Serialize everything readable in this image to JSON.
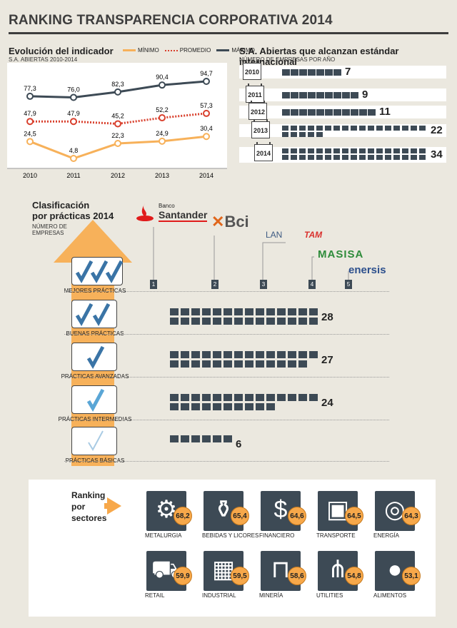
{
  "title": "RANKING TRANSPARENCIA CORPORATIVA 2014",
  "left_chart": {
    "heading": "Evolución del indicador",
    "subheading": "S.A. ABIERTAS 2010-2014",
    "legend": [
      "MÍNIMO",
      "PROMEDIO",
      "MÁXIMO"
    ],
    "years": [
      "2010",
      "2011",
      "2012",
      "2013",
      "2014"
    ],
    "min": [
      "24,5",
      "4,8",
      "22,3",
      "24,9",
      "30,4"
    ],
    "avg": [
      "47,9",
      "47,9",
      "45,2",
      "52,2",
      "57,3"
    ],
    "max": [
      "77,3",
      "76,0",
      "82,3",
      "90,4",
      "94,7"
    ]
  },
  "right_chart": {
    "heading": "S.A. Abiertas que alcanzan estándar internacional",
    "subheading": "NÚMERO DE EMPRESAS POR AÑO",
    "rows": [
      {
        "year": "2010",
        "count": "7"
      },
      {
        "year": "2011",
        "count": "9"
      },
      {
        "year": "2012",
        "count": "11"
      },
      {
        "year": "2013",
        "count": "22"
      },
      {
        "year": "2014",
        "count": "34"
      }
    ]
  },
  "classification": {
    "heading1": "Clasificación",
    "heading2": "por prácticas 2014",
    "sub1": "NÚMERO DE",
    "sub2": "EMPRESAS",
    "categories": [
      {
        "label": "MEJORES PRÁCTICAS",
        "count": ""
      },
      {
        "label": "BUENAS PRÁCTICAS",
        "count": "28"
      },
      {
        "label": "PRÁCTICAS AVANZADAS",
        "count": "27"
      },
      {
        "label": "PRÁCTICAS INTERMEDIAS",
        "count": "24"
      },
      {
        "label": "PRÁCTICAS BÁSICAS",
        "count": "6"
      }
    ],
    "logos": [
      "Banco",
      "Santander",
      "Bci",
      "LAN",
      "TAM",
      "MASISA",
      "enersis"
    ],
    "ranks": [
      "1",
      "2",
      "3",
      "4",
      "5"
    ]
  },
  "sectors": {
    "heading": [
      "Ranking",
      "por",
      "sectores"
    ],
    "items": [
      {
        "name": "METALURGIA",
        "score": "68,2"
      },
      {
        "name": "BEBIDAS Y LICORES",
        "score": "65,4"
      },
      {
        "name": "FINANCIERO",
        "score": "64,6"
      },
      {
        "name": "TRANSPORTE",
        "score": "64,5"
      },
      {
        "name": "ENERGÍA",
        "score": "64,3"
      },
      {
        "name": "RETAIL",
        "score": "59,9"
      },
      {
        "name": "INDUSTRIAL",
        "score": "59,5"
      },
      {
        "name": "MINERÍA",
        "score": "58,6"
      },
      {
        "name": "UTILITIES",
        "score": "54,8"
      },
      {
        "name": "ALIMENTOS",
        "score": "53,1"
      }
    ]
  },
  "chart_data": [
    {
      "type": "line",
      "x": [
        "2010",
        "2011",
        "2012",
        "2013",
        "2014"
      ],
      "series": [
        {
          "name": "MÍNIMO",
          "values": [
            24.5,
            4.8,
            22.3,
            24.9,
            30.4
          ]
        },
        {
          "name": "PROMEDIO",
          "values": [
            47.9,
            47.9,
            45.2,
            52.2,
            57.3
          ]
        },
        {
          "name": "MÁXIMO",
          "values": [
            77.3,
            76.0,
            82.3,
            90.4,
            94.7
          ]
        }
      ],
      "title": "Evolución del indicador",
      "colors": {
        "MÍNIMO": "#f7b15a",
        "PROMEDIO": "#d9412e",
        "MÁXIMO": "#3d4a55"
      }
    },
    {
      "type": "bar",
      "categories": [
        "2010",
        "2011",
        "2012",
        "2013",
        "2014"
      ],
      "values": [
        7,
        9,
        11,
        22,
        34
      ],
      "title": "S.A. Abiertas que alcanzan estándar internacional"
    },
    {
      "type": "bar",
      "categories": [
        "MEJORES PRÁCTICAS",
        "BUENAS PRÁCTICAS",
        "PRÁCTICAS AVANZADAS",
        "PRÁCTICAS INTERMEDIAS",
        "PRÁCTICAS BÁSICAS"
      ],
      "values": [
        5,
        28,
        27,
        24,
        6
      ],
      "title": "Clasificación por prácticas 2014"
    },
    {
      "type": "bar",
      "categories": [
        "METALURGIA",
        "BEBIDAS Y LICORES",
        "FINANCIERO",
        "TRANSPORTE",
        "ENERGÍA",
        "RETAIL",
        "INDUSTRIAL",
        "MINERÍA",
        "UTILITIES",
        "ALIMENTOS"
      ],
      "values": [
        68.2,
        65.4,
        64.6,
        64.5,
        64.3,
        59.9,
        59.5,
        58.6,
        54.8,
        53.1
      ],
      "title": "Ranking por sectores"
    }
  ]
}
